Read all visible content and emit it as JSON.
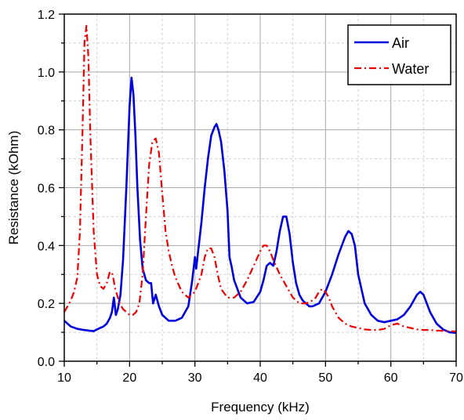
{
  "chart_data": {
    "type": "line",
    "xlabel": "Frequency (kHz)",
    "ylabel": "Resistance (kOhm)",
    "xlim": [
      10,
      70
    ],
    "ylim": [
      0,
      1.2
    ],
    "xticks": [
      10,
      20,
      30,
      40,
      50,
      60,
      70
    ],
    "yticks": [
      0.0,
      0.2,
      0.4,
      0.6,
      0.8,
      1.0,
      1.2
    ],
    "xtick_labels": [
      "10",
      "20",
      "30",
      "40",
      "50",
      "60",
      "70"
    ],
    "ytick_labels": [
      "0.0",
      "0.2",
      "0.4",
      "0.6",
      "0.8",
      "1.0",
      "1.2"
    ],
    "grid": true,
    "legend_position": "top-right",
    "series": [
      {
        "name": "Air",
        "color": "#0000dd",
        "style": "solid",
        "x": [
          10,
          11,
          12,
          13,
          14,
          14.5,
          15,
          15.5,
          16,
          16.5,
          17,
          17.3,
          17.6,
          17.9,
          18.2,
          18.6,
          19,
          19.5,
          20,
          20.3,
          20.6,
          20.9,
          21.2,
          21.6,
          22,
          22.5,
          23,
          23.3,
          23.6,
          24,
          24.5,
          25,
          26,
          27,
          28,
          29,
          29.6,
          30,
          30.2,
          30.5,
          31,
          31.5,
          32,
          32.5,
          33,
          33.3,
          33.6,
          34,
          34.5,
          35,
          35.3,
          35.6,
          36,
          37,
          38,
          39,
          40,
          40.5,
          41,
          41.5,
          42,
          42.5,
          43,
          43.5,
          44,
          44.5,
          45,
          45.5,
          46,
          46.5,
          47,
          47.5,
          48,
          49,
          50,
          51,
          52,
          53,
          53.5,
          54,
          54.5,
          55,
          56,
          57,
          58,
          59,
          60,
          61,
          62,
          63,
          64,
          64.5,
          65,
          66,
          67,
          68,
          69,
          70
        ],
        "y": [
          0.14,
          0.12,
          0.112,
          0.108,
          0.105,
          0.104,
          0.11,
          0.115,
          0.12,
          0.13,
          0.15,
          0.17,
          0.22,
          0.16,
          0.18,
          0.23,
          0.35,
          0.6,
          0.88,
          0.98,
          0.92,
          0.78,
          0.6,
          0.42,
          0.32,
          0.28,
          0.27,
          0.27,
          0.2,
          0.23,
          0.19,
          0.16,
          0.14,
          0.14,
          0.15,
          0.19,
          0.28,
          0.36,
          0.32,
          0.38,
          0.48,
          0.6,
          0.7,
          0.78,
          0.81,
          0.82,
          0.8,
          0.76,
          0.66,
          0.52,
          0.36,
          0.33,
          0.28,
          0.22,
          0.2,
          0.205,
          0.24,
          0.28,
          0.33,
          0.34,
          0.33,
          0.38,
          0.45,
          0.5,
          0.5,
          0.44,
          0.34,
          0.27,
          0.23,
          0.21,
          0.2,
          0.19,
          0.19,
          0.2,
          0.24,
          0.3,
          0.37,
          0.43,
          0.45,
          0.44,
          0.4,
          0.3,
          0.2,
          0.16,
          0.14,
          0.135,
          0.14,
          0.145,
          0.16,
          0.19,
          0.23,
          0.24,
          0.23,
          0.17,
          0.13,
          0.11,
          0.1,
          0.098
        ]
      },
      {
        "name": "Water",
        "color": "#ee0000",
        "style": "dashdot",
        "x": [
          10,
          10.5,
          11,
          11.5,
          12,
          12.4,
          12.8,
          13.1,
          13.4,
          13.7,
          14,
          14.5,
          15,
          15.5,
          16,
          16.5,
          17,
          17.4,
          17.8,
          18.5,
          19,
          19.5,
          20,
          20.5,
          21,
          21.5,
          22,
          22.5,
          23,
          23.5,
          24,
          24.5,
          25,
          25.5,
          26,
          26.5,
          27,
          28,
          29,
          30,
          31,
          31.5,
          32,
          32.5,
          33,
          33.5,
          34,
          35,
          36,
          37,
          38,
          39,
          40,
          40.5,
          41,
          41.5,
          42,
          43,
          44,
          45,
          46,
          47,
          48,
          48.5,
          49,
          49.5,
          50,
          50.5,
          51,
          52,
          53,
          54,
          55,
          56,
          57,
          58,
          59,
          60,
          61,
          62,
          63,
          64,
          65,
          66,
          67,
          68,
          69,
          70
        ],
        "y": [
          0.17,
          0.19,
          0.21,
          0.24,
          0.29,
          0.45,
          0.8,
          1.1,
          1.16,
          1.05,
          0.78,
          0.45,
          0.3,
          0.26,
          0.25,
          0.27,
          0.31,
          0.3,
          0.25,
          0.2,
          0.18,
          0.17,
          0.16,
          0.16,
          0.17,
          0.2,
          0.3,
          0.5,
          0.68,
          0.76,
          0.77,
          0.72,
          0.58,
          0.45,
          0.38,
          0.33,
          0.29,
          0.24,
          0.22,
          0.24,
          0.3,
          0.36,
          0.39,
          0.39,
          0.36,
          0.3,
          0.25,
          0.22,
          0.22,
          0.24,
          0.28,
          0.33,
          0.38,
          0.4,
          0.4,
          0.38,
          0.35,
          0.3,
          0.26,
          0.22,
          0.2,
          0.2,
          0.21,
          0.22,
          0.24,
          0.25,
          0.24,
          0.22,
          0.19,
          0.15,
          0.13,
          0.12,
          0.115,
          0.11,
          0.108,
          0.108,
          0.112,
          0.125,
          0.13,
          0.12,
          0.115,
          0.11,
          0.108,
          0.108,
          0.106,
          0.105,
          0.104,
          0.103
        ]
      }
    ]
  }
}
